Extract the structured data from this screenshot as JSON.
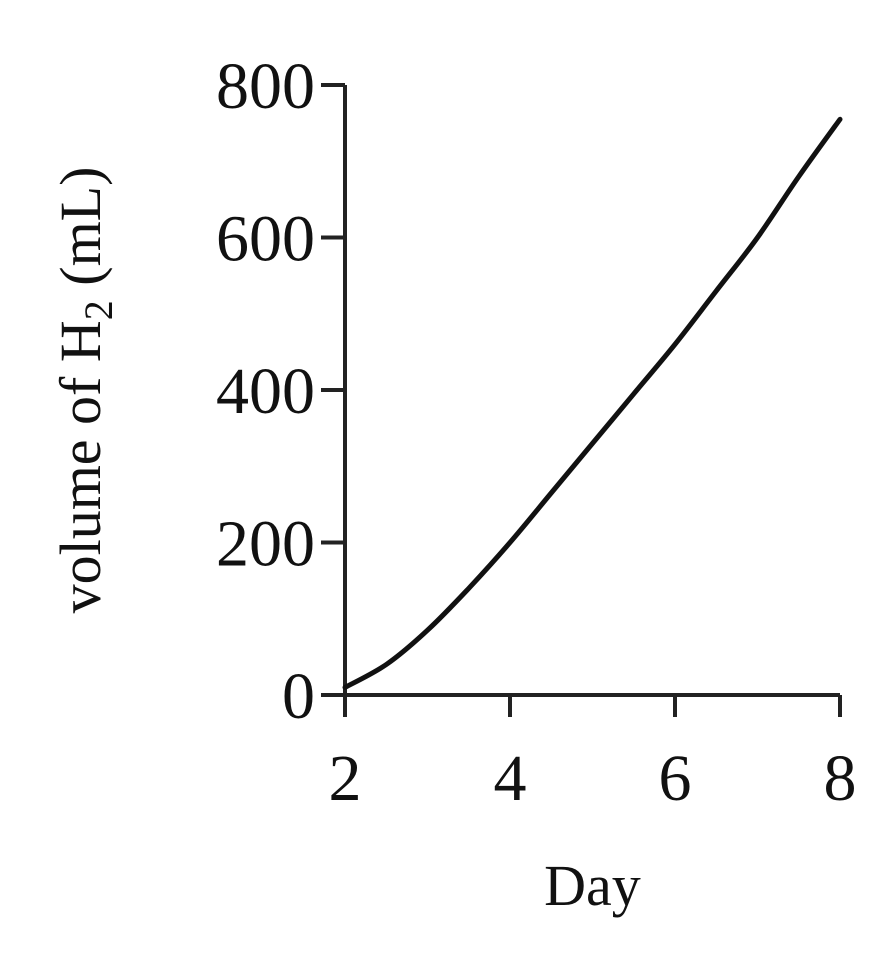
{
  "chart_data": {
    "type": "line",
    "title": "",
    "xlabel": "Day",
    "ylabel": {
      "prefix": "volume of H",
      "subscript": "2",
      "suffix": " (mL)"
    },
    "xlim": [
      2,
      8
    ],
    "ylim": [
      0,
      800
    ],
    "xticks": [
      2,
      4,
      6,
      8
    ],
    "yticks": [
      0,
      200,
      400,
      600,
      800
    ],
    "xtick_labels": [
      "2",
      "4",
      "6",
      "8"
    ],
    "ytick_labels": [
      "0",
      "200",
      "400",
      "600",
      "800"
    ],
    "grid": false,
    "legend": "none",
    "series": [
      {
        "x": [
          2.0,
          2.5,
          3.0,
          3.5,
          4.0,
          4.5,
          5.0,
          5.5,
          6.0,
          6.5,
          7.0,
          7.5,
          8.0
        ],
        "y": [
          10,
          40,
          85,
          140,
          200,
          265,
          330,
          395,
          460,
          530,
          600,
          680,
          755
        ]
      }
    ]
  }
}
